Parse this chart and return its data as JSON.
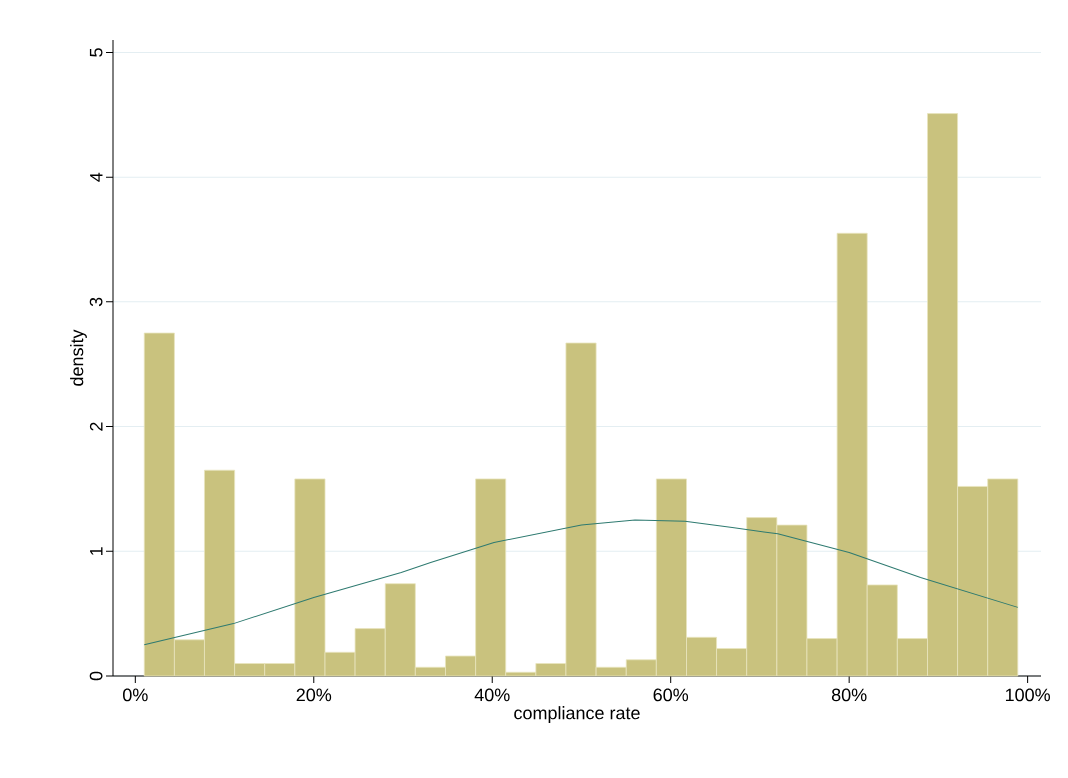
{
  "chart_data": {
    "type": "histogram",
    "xlabel": "compliance rate",
    "ylabel": "density",
    "series": [
      {
        "color": "#c9c27e",
        "bins": [
          0.01,
          0.0438,
          0.0775,
          0.1113,
          0.145,
          0.1788,
          0.2126,
          0.2463,
          0.2801,
          0.3138,
          0.3476,
          0.3814,
          0.4151,
          0.4489,
          0.4826,
          0.5164,
          0.5502,
          0.5839,
          0.6177,
          0.6514,
          0.6852,
          0.719,
          0.7527,
          0.7865,
          0.8202,
          0.854,
          0.8878,
          0.9215,
          0.9553,
          0.989
        ],
        "values": [
          2.75,
          0.29,
          1.65,
          0.1,
          0.1,
          1.58,
          0.19,
          0.38,
          0.74,
          0.07,
          0.16,
          1.58,
          0.03,
          0.1,
          2.67,
          0.07,
          0.13,
          1.58,
          0.31,
          0.22,
          1.27,
          1.21,
          0.3,
          3.55,
          0.73,
          0.3,
          4.51,
          1.52,
          1.58
        ]
      },
      {
        "type": "line",
        "color": "#2e7a70",
        "x": [
          0.01,
          0.11,
          0.2,
          0.298,
          0.331,
          0.402,
          0.5,
          0.56,
          0.616,
          0.669,
          0.72,
          0.8,
          0.88,
          0.989
        ],
        "values": [
          0.25,
          0.42,
          0.63,
          0.83,
          0.91,
          1.07,
          1.21,
          1.25,
          1.24,
          1.19,
          1.14,
          0.99,
          0.79,
          0.55
        ]
      }
    ],
    "xlim": [
      -0.025,
      1.015
    ],
    "ylim": [
      0,
      5.1
    ],
    "xticks": [
      {
        "value": 0,
        "label": "0%"
      },
      {
        "value": 0.2,
        "label": "20%"
      },
      {
        "value": 0.4,
        "label": "40%"
      },
      {
        "value": 0.6,
        "label": "60%"
      },
      {
        "value": 0.8,
        "label": "80%"
      },
      {
        "value": 1,
        "label": "100%"
      }
    ],
    "yticks": [
      0,
      1,
      2,
      3,
      4,
      5
    ],
    "grid": "y"
  }
}
